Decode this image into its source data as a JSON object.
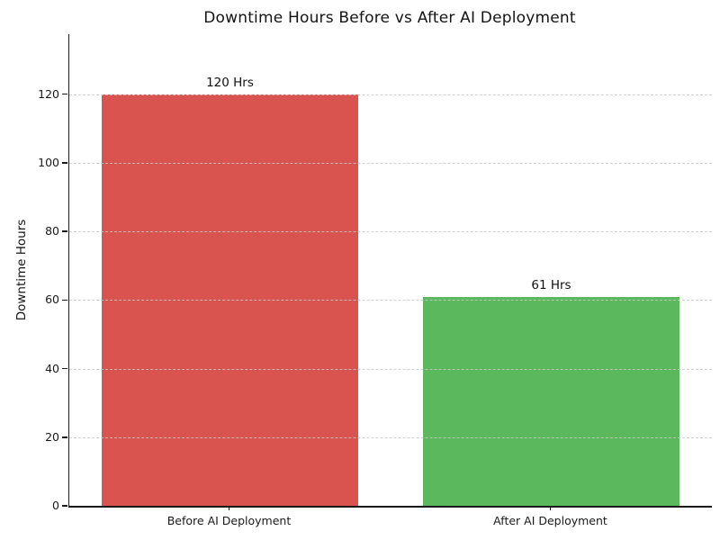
{
  "chart_data": {
    "type": "bar",
    "title": "Downtime Hours Before vs After AI Deployment",
    "categories": [
      "Before AI Deployment",
      "After AI Deployment"
    ],
    "values": [
      120,
      61
    ],
    "bar_value_labels": [
      "120 Hrs",
      "61 Hrs"
    ],
    "bar_colors": [
      "#d9534f",
      "#5cb85c"
    ],
    "xlabel": "",
    "ylabel": "Downtime Hours",
    "ylim": [
      0,
      137.5
    ],
    "yticks": [
      0,
      20,
      40,
      60,
      80,
      100,
      120
    ],
    "grid": {
      "axis": "y",
      "style": "dashed",
      "color": "#c8c8c8"
    },
    "legend": "none",
    "spines": [
      "left",
      "bottom"
    ]
  }
}
